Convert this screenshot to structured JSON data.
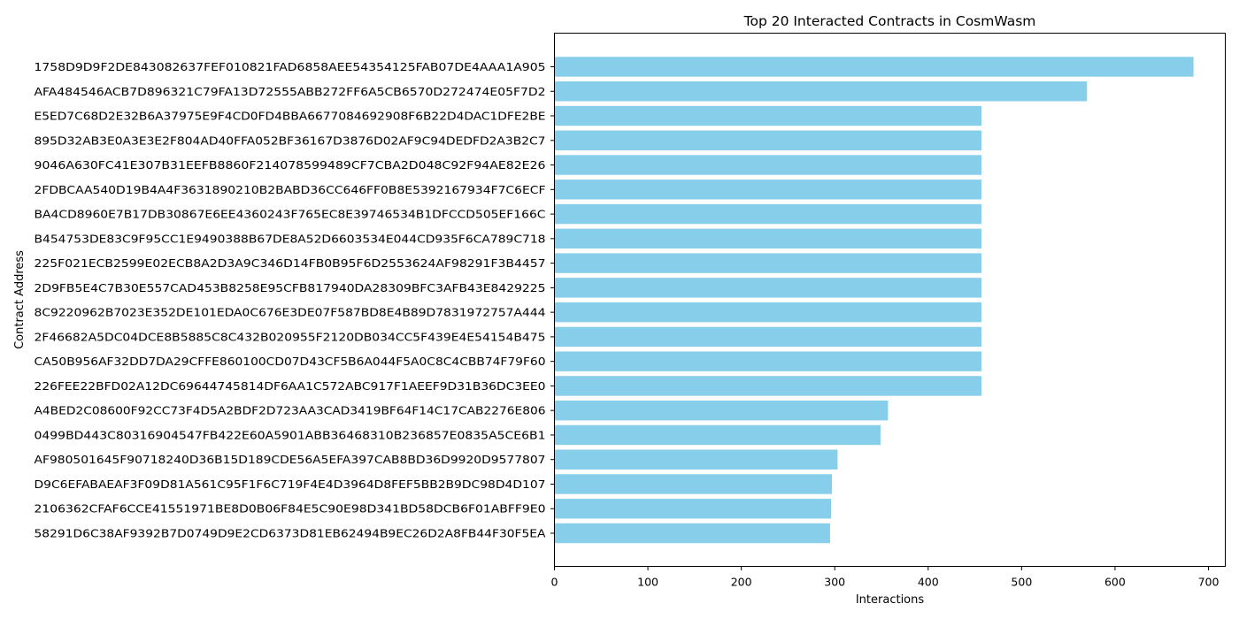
{
  "chart_data": {
    "type": "bar",
    "orientation": "horizontal",
    "title": "Top 20 Interacted Contracts in CosmWasm",
    "xlabel": "Interactions",
    "ylabel": "Contract Address",
    "xlim": [
      0,
      718
    ],
    "xticks": [
      0,
      100,
      200,
      300,
      400,
      500,
      600,
      700
    ],
    "grid": false,
    "bar_color": "#87CEEB",
    "categories": [
      "1758D9D9F2DE843082637FEF010821FAD6858AEE54354125FAB07DE4AAA1A905",
      "AFA484546ACB7D896321C79FA13D72555ABB272FF6A5CB6570D272474E05F7D2",
      "E5ED7C68D2E32B6A37975E9F4CD0FD4BBA6677084692908F6B22D4DAC1DFE2BE",
      "895D32AB3E0A3E3E2F804AD40FFA052BF36167D3876D02AF9C94DEDFD2A3B2C7",
      "9046A630FC41E307B31EEFB8860F214078599489CF7CBA2D048C92F94AE82E26",
      "2FDBCAA540D19B4A4F3631890210B2BABD36CC646FF0B8E5392167934F7C6ECF",
      "BA4CD8960E7B17DB30867E6EE4360243F765EC8E39746534B1DFCCD505EF166C",
      "B454753DE83C9F95CC1E9490388B67DE8A52D6603534E044CD935F6CA789C718",
      "225F021ECB2599E02ECB8A2D3A9C346D14FB0B95F6D2553624AF98291F3B4457",
      "2D9FB5E4C7B30E557CAD453B8258E95CFB817940DA28309BFC3AFB43E8429225",
      "8C9220962B7023E352DE101EDA0C676E3DE07F587BD8E4B89D7831972757A444",
      "2F46682A5DC04DCE8B5885C8C432B020955F2120DB034CC5F439E4E54154B475",
      "CA50B956AF32DD7DA29CFFE860100CD07D43CF5B6A044F5A0C8C4CBB74F79F60",
      "226FEE22BFD02A12DC69644745814DF6AA1C572ABC917F1AEEF9D31B36DC3EE0",
      "A4BED2C08600F92CC73F4D5A2BDF2D723AA3CAD3419BF64F14C17CAB2276E806",
      "0499BD443C80316904547FB422E60A5901ABB36468310B236857E0835A5CE6B1",
      "AF980501645F90718240D36B15D189CDE56A5EFA397CAB8BD36D9920D9577807",
      "D9C6EFABAEAF3F09D81A561C95F1F6C719F4E4D3964D8FEF5BB2B9DC98D4D107",
      "2106362CFAF6CCE41551971BE8D0B06F84E5C90E98D341BD58DCB6F01ABFF9E0",
      "58291D6C38AF9392B7D0749D9E2CD6373D81EB62494B9EC26D2A8FB44F30F5EA"
    ],
    "values": [
      684,
      570,
      457,
      457,
      457,
      457,
      457,
      457,
      457,
      457,
      457,
      457,
      457,
      457,
      357,
      349,
      303,
      297,
      296,
      295
    ]
  }
}
